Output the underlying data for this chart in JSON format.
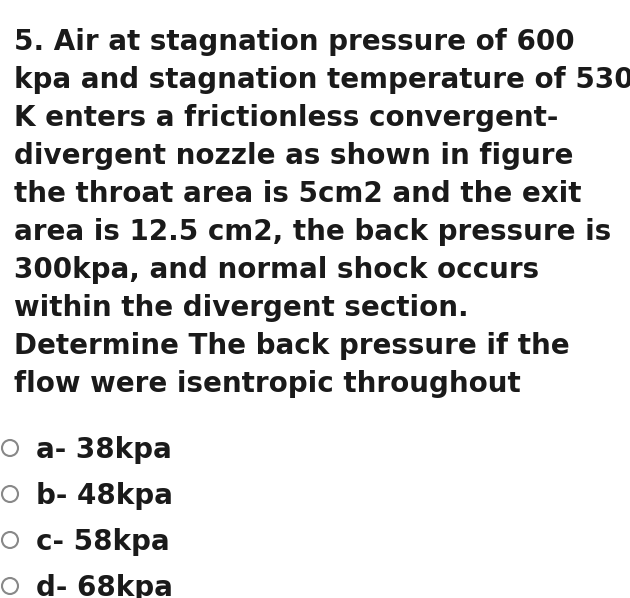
{
  "background_color": "#ffffff",
  "question_text_lines": [
    "5. Air at stagnation pressure of 600",
    "kpa and stagnation temperature of 530",
    "K enters a frictionless convergent-",
    "divergent nozzle as shown in figure",
    "the throat area is 5cm2 and the exit",
    "area is 12.5 cm2, the back pressure is",
    "300kpa, and normal shock occurs",
    "within the divergent section.",
    "Determine The back pressure if the",
    "flow were isentropic throughout"
  ],
  "options": [
    "a- 38kpa",
    "b- 48kpa",
    "c- 58kpa",
    "d- 68kpa"
  ],
  "text_color": "#1a1a1a",
  "font_size_question": 20,
  "font_size_options": 20,
  "circle_color": "#888888",
  "fig_width": 6.3,
  "fig_height": 5.98,
  "dpi": 100
}
